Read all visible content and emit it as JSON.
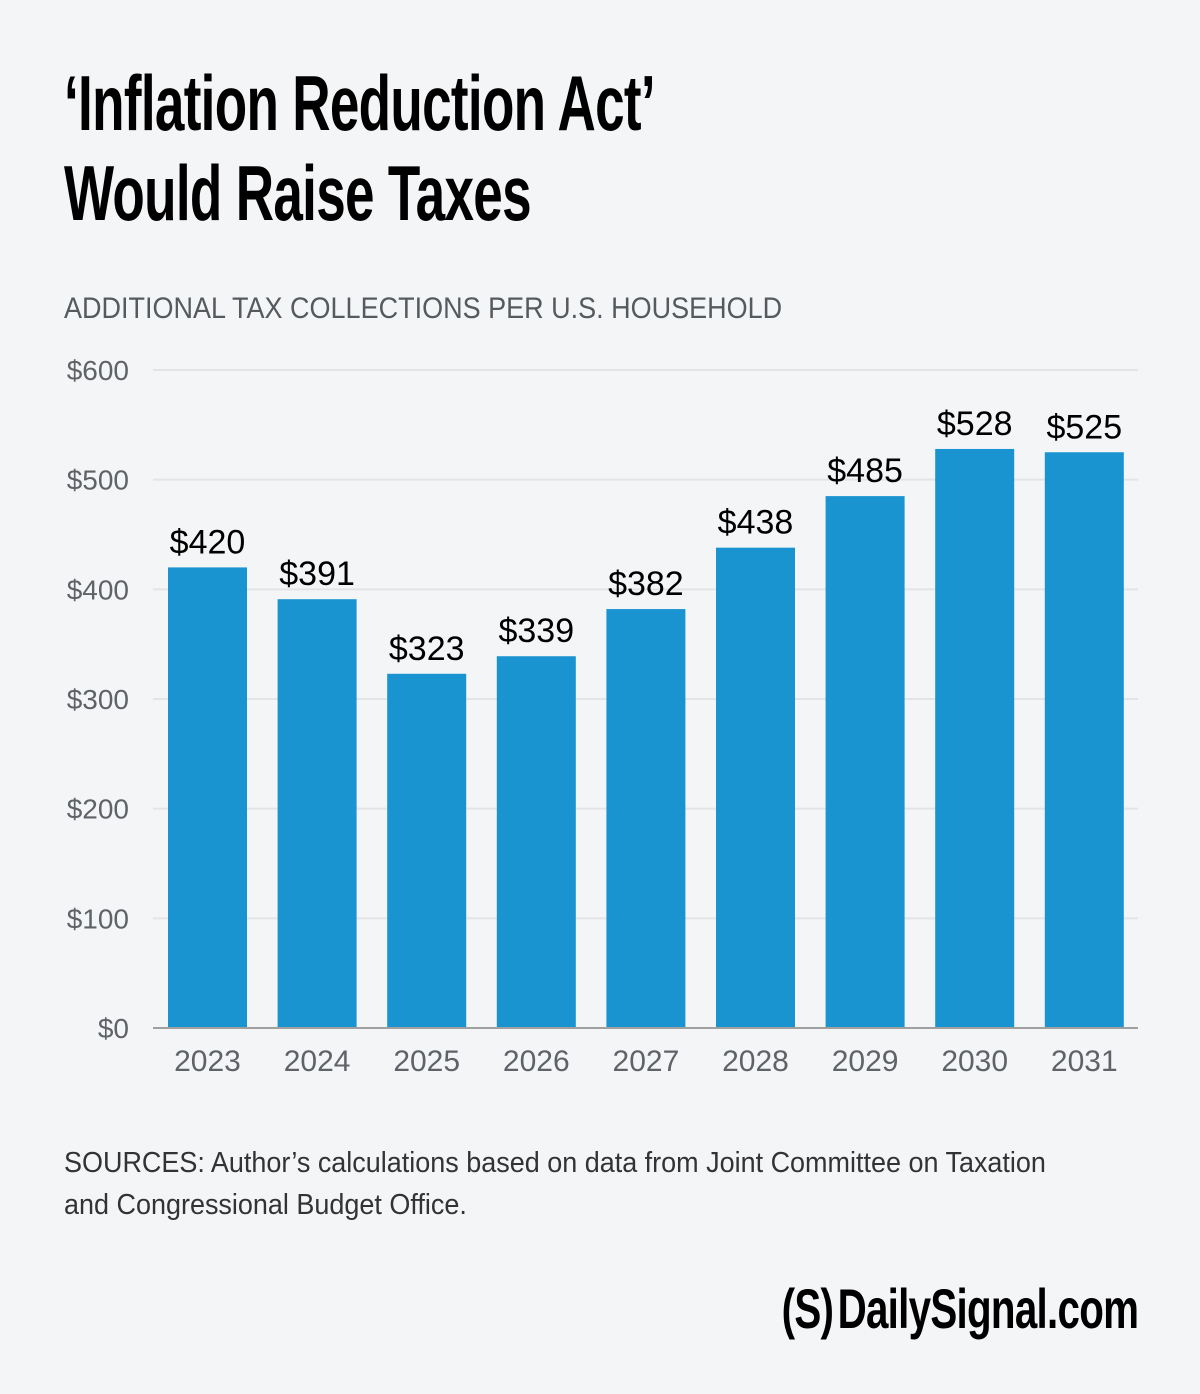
{
  "header": {
    "title_line1": "‘Inflation Reduction Act’",
    "title_line2": "Would Raise Taxes",
    "subtitle": "ADDITIONAL TAX COLLECTIONS PER U.S. HOUSEHOLD"
  },
  "footer": {
    "sources": "SOURCES: Author’s calculations based on data from Joint Committee on Taxation and Congressional Budget Office.",
    "logo_mark": "(S)",
    "logo_text": "DailySignal.com"
  },
  "colors": {
    "background": "#f4f5f7",
    "bar": "#1a94d0",
    "gridline": "#e3e4e6",
    "axis": "#a0a0a0",
    "tick_text": "#5f6368"
  },
  "chart_data": {
    "type": "bar",
    "title": "‘Inflation Reduction Act’ Would Raise Taxes",
    "subtitle": "ADDITIONAL TAX COLLECTIONS PER U.S. HOUSEHOLD",
    "xlabel": "",
    "ylabel": "",
    "categories": [
      "2023",
      "2024",
      "2025",
      "2026",
      "2027",
      "2028",
      "2029",
      "2030",
      "2031"
    ],
    "values": [
      420,
      391,
      323,
      339,
      382,
      438,
      485,
      528,
      525
    ],
    "data_labels": [
      "$420",
      "$391",
      "$323",
      "$339",
      "$382",
      "$438",
      "$485",
      "$528",
      "$525"
    ],
    "ylim": [
      0,
      600
    ],
    "yticks": [
      0,
      100,
      200,
      300,
      400,
      500,
      600
    ],
    "ytick_labels": [
      "$0",
      "$100",
      "$200",
      "$300",
      "$400",
      "$500",
      "$600"
    ],
    "grid": true,
    "legend": "none"
  }
}
